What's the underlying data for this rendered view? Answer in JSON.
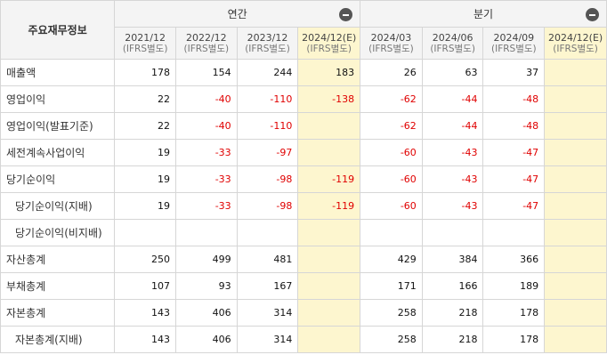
{
  "header": {
    "corner": "주요재무정보",
    "annual_label": "연간",
    "quarter_label": "분기",
    "collapse_icon": "minus-circle-icon"
  },
  "periods": [
    {
      "date": "2021/12",
      "std": "(IFRS별도)",
      "estimate": false
    },
    {
      "date": "2022/12",
      "std": "(IFRS별도)",
      "estimate": false
    },
    {
      "date": "2023/12",
      "std": "(IFRS별도)",
      "estimate": false
    },
    {
      "date": "2024/12(E)",
      "std": "(IFRS별도)",
      "estimate": true
    },
    {
      "date": "2024/03",
      "std": "(IFRS별도)",
      "estimate": false
    },
    {
      "date": "2024/06",
      "std": "(IFRS별도)",
      "estimate": false
    },
    {
      "date": "2024/09",
      "std": "(IFRS별도)",
      "estimate": false
    },
    {
      "date": "2024/12(E)",
      "std": "(IFRS별도)",
      "estimate": true
    }
  ],
  "rows": [
    {
      "label": "매출액",
      "indent": false,
      "values": [
        "178",
        "154",
        "244",
        "183",
        "26",
        "63",
        "37",
        ""
      ]
    },
    {
      "label": "영업이익",
      "indent": false,
      "values": [
        "22",
        "-40",
        "-110",
        "-138",
        "-62",
        "-44",
        "-48",
        ""
      ]
    },
    {
      "label": "영업이익(발표기준)",
      "indent": false,
      "values": [
        "22",
        "-40",
        "-110",
        "",
        "-62",
        "-44",
        "-48",
        ""
      ]
    },
    {
      "label": "세전계속사업이익",
      "indent": false,
      "values": [
        "19",
        "-33",
        "-97",
        "",
        "-60",
        "-43",
        "-47",
        ""
      ]
    },
    {
      "label": "당기순이익",
      "indent": false,
      "values": [
        "19",
        "-33",
        "-98",
        "-119",
        "-60",
        "-43",
        "-47",
        ""
      ]
    },
    {
      "label": "당기순이익(지배)",
      "indent": true,
      "values": [
        "19",
        "-33",
        "-98",
        "-119",
        "-60",
        "-43",
        "-47",
        ""
      ]
    },
    {
      "label": "당기순이익(비지배)",
      "indent": true,
      "values": [
        "",
        "",
        "",
        "",
        "",
        "",
        "",
        ""
      ]
    },
    {
      "label": "자산총계",
      "indent": false,
      "values": [
        "250",
        "499",
        "481",
        "",
        "429",
        "384",
        "366",
        ""
      ]
    },
    {
      "label": "부채총계",
      "indent": false,
      "values": [
        "107",
        "93",
        "167",
        "",
        "171",
        "166",
        "189",
        ""
      ]
    },
    {
      "label": "자본총계",
      "indent": false,
      "values": [
        "143",
        "406",
        "314",
        "",
        "258",
        "218",
        "178",
        ""
      ]
    },
    {
      "label": "자본총계(지배)",
      "indent": true,
      "values": [
        "143",
        "406",
        "314",
        "",
        "258",
        "218",
        "178",
        ""
      ]
    }
  ],
  "colors": {
    "negative": "#e00000",
    "estimate_bg": "#fdf6cf",
    "header_bg": "#f4f4f4"
  }
}
